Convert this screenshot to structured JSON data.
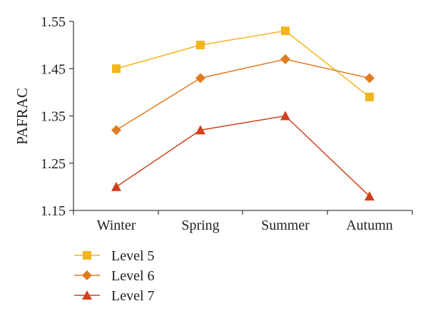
{
  "chart_data": {
    "type": "line",
    "title": "",
    "xlabel": "",
    "ylabel": "PAFRAC",
    "categories": [
      "Winter",
      "Spring",
      "Summer",
      "Autumn"
    ],
    "yticks": [
      "1.15",
      "1.25",
      "1.35",
      "1.45",
      "1.55"
    ],
    "ylim": [
      1.15,
      1.55
    ],
    "grid": false,
    "legend": "bottom-left",
    "series": [
      {
        "name": "Level 5",
        "values": [
          1.45,
          1.5,
          1.53,
          1.39
        ],
        "color": "#F2B61B",
        "marker": "square"
      },
      {
        "name": "Level 6",
        "values": [
          1.32,
          1.43,
          1.47,
          1.43
        ],
        "color": "#E07B1F",
        "marker": "diamond"
      },
      {
        "name": "Level 7",
        "values": [
          1.2,
          1.32,
          1.35,
          1.18
        ],
        "color": "#D2401B",
        "marker": "triangle"
      }
    ]
  }
}
